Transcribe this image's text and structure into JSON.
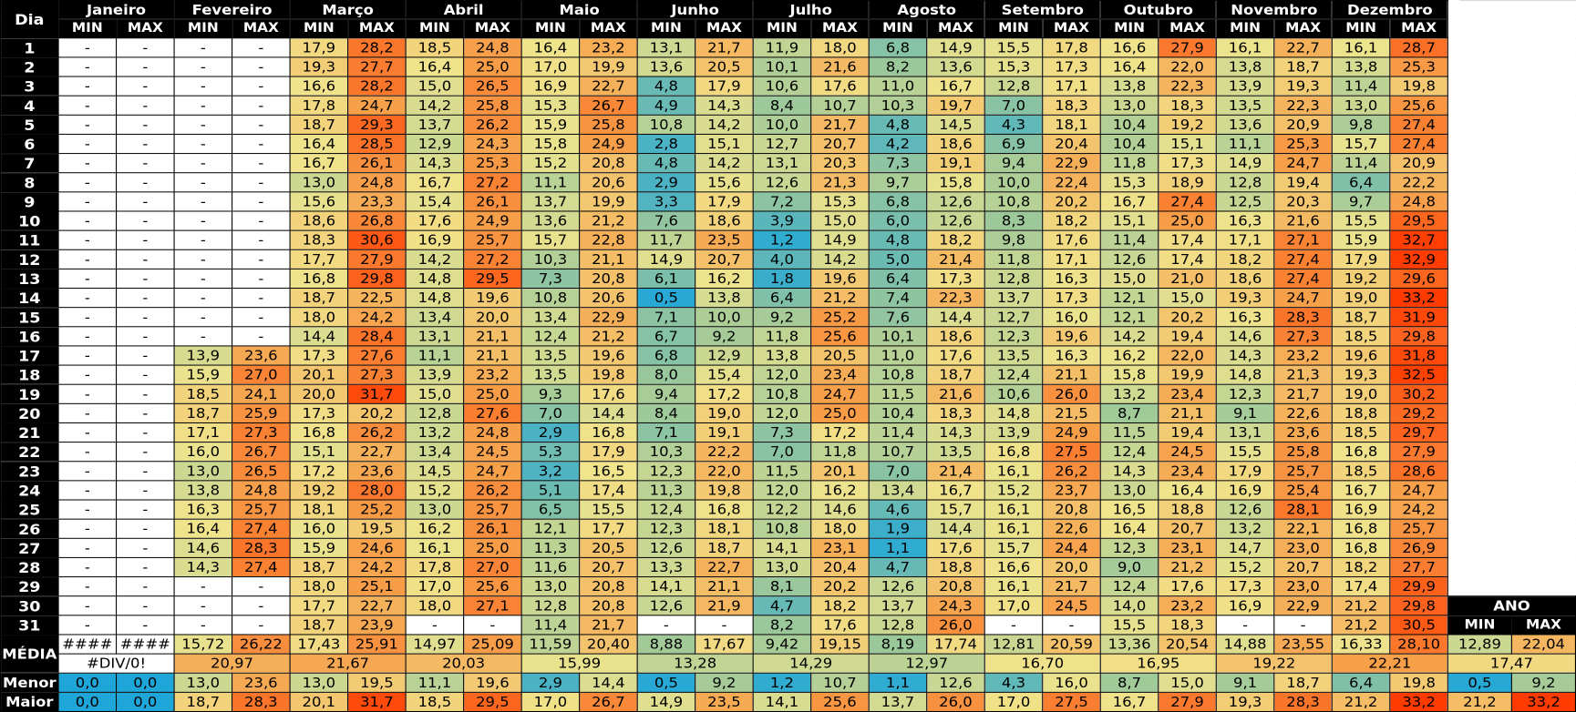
{
  "sheet": {
    "day_header": "Dia",
    "min_label": "MIN",
    "max_label": "MAX",
    "months": [
      "Janeiro",
      "Fevereiro",
      "Março",
      "Abril",
      "Maio",
      "Junho",
      "Julho",
      "Agosto",
      "Setembro",
      "Outubro",
      "Novembro",
      "Dezembro"
    ],
    "rows": [
      [
        "1",
        "-",
        "-",
        "-",
        "-",
        "17,9",
        "28,2",
        "18,5",
        "24,8",
        "16,4",
        "23,2",
        "13,1",
        "21,7",
        "11,9",
        "18,0",
        "6,8",
        "14,9",
        "15,5",
        "17,8",
        "16,6",
        "27,9",
        "16,1",
        "22,7",
        "16,1",
        "28,7"
      ],
      [
        "2",
        "-",
        "-",
        "-",
        "-",
        "19,3",
        "27,7",
        "16,4",
        "25,0",
        "17,0",
        "19,9",
        "13,6",
        "20,5",
        "10,1",
        "21,6",
        "8,2",
        "13,6",
        "15,3",
        "17,3",
        "16,4",
        "22,0",
        "13,8",
        "18,7",
        "13,8",
        "25,3"
      ],
      [
        "3",
        "-",
        "-",
        "-",
        "-",
        "16,6",
        "28,2",
        "15,0",
        "26,5",
        "16,9",
        "22,7",
        "4,8",
        "17,9",
        "10,6",
        "17,6",
        "11,0",
        "16,7",
        "12,8",
        "17,1",
        "13,8",
        "22,3",
        "13,9",
        "19,3",
        "11,4",
        "19,8"
      ],
      [
        "4",
        "-",
        "-",
        "-",
        "-",
        "17,8",
        "24,7",
        "14,2",
        "25,8",
        "15,3",
        "26,7",
        "4,9",
        "14,3",
        "8,4",
        "10,7",
        "10,3",
        "19,7",
        "7,0",
        "18,3",
        "13,0",
        "18,3",
        "13,5",
        "22,3",
        "13,0",
        "25,6"
      ],
      [
        "5",
        "-",
        "-",
        "-",
        "-",
        "18,7",
        "29,3",
        "13,7",
        "26,2",
        "15,9",
        "25,8",
        "10,8",
        "14,2",
        "10,0",
        "21,7",
        "4,8",
        "14,5",
        "4,3",
        "18,1",
        "10,4",
        "19,2",
        "13,6",
        "20,9",
        "9,8",
        "27,4"
      ],
      [
        "6",
        "-",
        "-",
        "-",
        "-",
        "16,4",
        "28,5",
        "12,9",
        "24,3",
        "15,8",
        "24,9",
        "2,8",
        "15,1",
        "12,7",
        "20,7",
        "4,2",
        "18,6",
        "6,9",
        "20,4",
        "10,4",
        "15,1",
        "11,1",
        "25,3",
        "15,7",
        "27,4"
      ],
      [
        "7",
        "-",
        "-",
        "-",
        "-",
        "16,7",
        "26,1",
        "14,3",
        "25,3",
        "15,2",
        "20,8",
        "4,8",
        "14,2",
        "13,1",
        "20,3",
        "7,3",
        "19,1",
        "9,4",
        "22,9",
        "11,8",
        "17,3",
        "14,9",
        "24,7",
        "11,4",
        "20,9"
      ],
      [
        "8",
        "-",
        "-",
        "-",
        "-",
        "13,0",
        "24,8",
        "16,7",
        "27,2",
        "11,1",
        "20,6",
        "2,9",
        "15,6",
        "12,6",
        "21,3",
        "9,7",
        "15,8",
        "10,0",
        "22,4",
        "15,3",
        "18,9",
        "12,8",
        "19,4",
        "6,4",
        "22,2"
      ],
      [
        "9",
        "-",
        "-",
        "-",
        "-",
        "15,6",
        "23,3",
        "15,4",
        "26,1",
        "13,7",
        "19,9",
        "3,3",
        "17,9",
        "7,2",
        "15,3",
        "6,8",
        "12,6",
        "10,8",
        "20,2",
        "16,7",
        "27,4",
        "12,5",
        "20,3",
        "9,7",
        "24,8"
      ],
      [
        "10",
        "-",
        "-",
        "-",
        "-",
        "18,6",
        "26,8",
        "17,6",
        "24,9",
        "13,6",
        "21,2",
        "7,6",
        "18,6",
        "3,9",
        "15,0",
        "6,0",
        "12,6",
        "8,3",
        "18,2",
        "15,1",
        "25,0",
        "16,3",
        "21,6",
        "15,5",
        "29,5"
      ],
      [
        "11",
        "-",
        "-",
        "-",
        "-",
        "18,3",
        "30,6",
        "16,9",
        "25,7",
        "15,7",
        "22,8",
        "11,7",
        "23,5",
        "1,2",
        "14,9",
        "4,8",
        "18,2",
        "9,8",
        "17,6",
        "11,4",
        "17,4",
        "17,1",
        "27,1",
        "15,9",
        "32,7"
      ],
      [
        "12",
        "-",
        "-",
        "-",
        "-",
        "17,7",
        "27,9",
        "14,2",
        "27,2",
        "10,3",
        "21,1",
        "14,9",
        "20,7",
        "4,0",
        "14,2",
        "5,0",
        "21,4",
        "11,8",
        "17,1",
        "12,6",
        "17,4",
        "18,2",
        "27,4",
        "17,9",
        "32,9"
      ],
      [
        "13",
        "-",
        "-",
        "-",
        "-",
        "16,8",
        "29,8",
        "14,8",
        "29,5",
        "7,3",
        "20,8",
        "6,1",
        "16,2",
        "1,8",
        "19,6",
        "6,4",
        "17,3",
        "12,8",
        "16,3",
        "15,0",
        "21,0",
        "18,6",
        "27,4",
        "19,2",
        "29,6"
      ],
      [
        "14",
        "-",
        "-",
        "-",
        "-",
        "18,7",
        "22,5",
        "14,8",
        "19,6",
        "10,8",
        "20,6",
        "0,5",
        "13,8",
        "6,4",
        "21,2",
        "7,4",
        "22,3",
        "13,7",
        "17,3",
        "12,1",
        "15,0",
        "19,3",
        "24,7",
        "19,0",
        "33,2"
      ],
      [
        "15",
        "-",
        "-",
        "-",
        "-",
        "18,0",
        "24,2",
        "13,4",
        "20,0",
        "13,4",
        "22,9",
        "7,1",
        "10,0",
        "9,2",
        "25,2",
        "7,6",
        "14,4",
        "12,7",
        "16,0",
        "12,1",
        "20,2",
        "16,3",
        "28,3",
        "18,7",
        "31,9"
      ],
      [
        "16",
        "-",
        "-",
        "-",
        "-",
        "14,4",
        "28,4",
        "13,1",
        "21,1",
        "12,4",
        "21,2",
        "6,7",
        "9,2",
        "11,8",
        "25,6",
        "10,1",
        "18,6",
        "12,3",
        "19,6",
        "14,2",
        "19,4",
        "14,6",
        "27,3",
        "18,5",
        "29,8"
      ],
      [
        "17",
        "-",
        "-",
        "13,9",
        "23,6",
        "17,3",
        "27,6",
        "11,1",
        "21,1",
        "13,5",
        "19,6",
        "6,8",
        "12,9",
        "13,8",
        "20,5",
        "11,0",
        "17,6",
        "13,5",
        "16,3",
        "16,2",
        "22,0",
        "14,3",
        "23,2",
        "19,6",
        "31,8"
      ],
      [
        "18",
        "-",
        "-",
        "15,9",
        "27,0",
        "20,1",
        "27,3",
        "13,9",
        "23,2",
        "13,5",
        "19,8",
        "8,0",
        "15,4",
        "12,0",
        "23,4",
        "10,8",
        "18,7",
        "12,4",
        "21,1",
        "15,8",
        "19,9",
        "14,8",
        "21,3",
        "19,3",
        "32,5"
      ],
      [
        "19",
        "-",
        "-",
        "18,5",
        "24,1",
        "20,0",
        "31,7",
        "15,0",
        "25,0",
        "9,3",
        "17,6",
        "9,4",
        "17,2",
        "10,8",
        "24,7",
        "11,5",
        "21,6",
        "10,6",
        "26,0",
        "13,2",
        "23,4",
        "12,3",
        "21,7",
        "19,0",
        "30,2"
      ],
      [
        "20",
        "-",
        "-",
        "18,7",
        "25,9",
        "17,3",
        "20,2",
        "12,8",
        "27,6",
        "7,0",
        "14,4",
        "8,4",
        "19,0",
        "12,0",
        "25,0",
        "10,4",
        "18,3",
        "14,8",
        "21,5",
        "8,7",
        "21,1",
        "9,1",
        "22,6",
        "18,8",
        "29,2"
      ],
      [
        "21",
        "-",
        "-",
        "17,1",
        "27,3",
        "16,8",
        "26,2",
        "13,2",
        "24,8",
        "2,9",
        "16,8",
        "7,1",
        "19,1",
        "7,3",
        "17,2",
        "11,4",
        "14,3",
        "13,9",
        "24,9",
        "11,5",
        "19,4",
        "13,1",
        "23,6",
        "18,5",
        "29,7"
      ],
      [
        "22",
        "-",
        "-",
        "16,0",
        "26,7",
        "15,1",
        "22,7",
        "13,4",
        "24,5",
        "5,3",
        "17,9",
        "10,3",
        "22,2",
        "7,0",
        "11,8",
        "10,7",
        "13,5",
        "16,8",
        "27,5",
        "12,4",
        "24,5",
        "15,5",
        "25,8",
        "16,8",
        "27,9"
      ],
      [
        "23",
        "-",
        "-",
        "13,0",
        "26,5",
        "17,2",
        "23,6",
        "14,5",
        "24,7",
        "3,2",
        "16,5",
        "12,3",
        "22,0",
        "11,5",
        "20,1",
        "7,0",
        "21,4",
        "16,1",
        "26,2",
        "14,3",
        "23,4",
        "17,9",
        "25,7",
        "18,5",
        "28,6"
      ],
      [
        "24",
        "-",
        "-",
        "13,8",
        "24,8",
        "19,2",
        "28,0",
        "15,2",
        "26,2",
        "5,1",
        "17,4",
        "11,3",
        "19,8",
        "12,0",
        "16,2",
        "13,4",
        "16,7",
        "15,2",
        "23,7",
        "13,0",
        "16,4",
        "16,9",
        "25,4",
        "16,7",
        "24,7"
      ],
      [
        "25",
        "-",
        "-",
        "16,3",
        "25,7",
        "18,1",
        "25,2",
        "13,0",
        "25,7",
        "6,5",
        "15,5",
        "12,4",
        "16,8",
        "12,2",
        "14,6",
        "4,6",
        "15,7",
        "16,1",
        "20,8",
        "16,5",
        "18,8",
        "12,6",
        "28,1",
        "16,9",
        "24,2"
      ],
      [
        "26",
        "-",
        "-",
        "16,4",
        "27,4",
        "16,0",
        "19,5",
        "16,2",
        "26,1",
        "12,1",
        "17,7",
        "12,3",
        "18,1",
        "10,8",
        "18,0",
        "1,9",
        "14,4",
        "16,1",
        "22,6",
        "16,4",
        "20,7",
        "13,2",
        "22,1",
        "16,8",
        "25,7"
      ],
      [
        "27",
        "-",
        "-",
        "14,6",
        "28,3",
        "15,9",
        "24,6",
        "16,1",
        "25,0",
        "11,3",
        "20,5",
        "12,6",
        "18,7",
        "14,1",
        "23,1",
        "1,1",
        "17,6",
        "15,7",
        "24,4",
        "12,3",
        "23,1",
        "14,7",
        "23,0",
        "16,8",
        "26,9"
      ],
      [
        "28",
        "-",
        "-",
        "14,3",
        "27,4",
        "18,7",
        "24,2",
        "17,8",
        "27,0",
        "11,6",
        "20,7",
        "13,3",
        "22,7",
        "13,0",
        "20,4",
        "4,7",
        "18,8",
        "16,6",
        "20,0",
        "9,0",
        "21,2",
        "15,2",
        "20,7",
        "18,2",
        "27,7"
      ],
      [
        "29",
        "-",
        "-",
        "-",
        "-",
        "18,0",
        "25,1",
        "17,0",
        "25,6",
        "13,0",
        "20,8",
        "14,1",
        "21,1",
        "8,1",
        "20,2",
        "12,6",
        "20,8",
        "16,1",
        "21,7",
        "12,4",
        "17,6",
        "17,3",
        "23,0",
        "17,4",
        "29,9"
      ],
      [
        "30",
        "-",
        "-",
        "-",
        "-",
        "17,7",
        "22,7",
        "18,0",
        "27,1",
        "12,8",
        "20,8",
        "12,6",
        "21,9",
        "4,7",
        "18,2",
        "13,7",
        "24,3",
        "17,0",
        "24,5",
        "14,0",
        "23,2",
        "16,9",
        "22,9",
        "21,2",
        "29,8"
      ],
      [
        "31",
        "-",
        "-",
        "-",
        "-",
        "18,7",
        "23,9",
        "-",
        "-",
        "11,4",
        "21,7",
        "-",
        "-",
        "8,2",
        "17,6",
        "12,8",
        "26,0",
        "-",
        "-",
        "15,5",
        "18,3",
        "-",
        "-",
        "21,2",
        "30,5"
      ]
    ],
    "media_label": "MÉDIA",
    "media": [
      "####",
      "####",
      "15,72",
      "26,22",
      "17,43",
      "25,91",
      "14,97",
      "25,09",
      "11,59",
      "20,40",
      "8,88",
      "17,67",
      "9,42",
      "19,15",
      "8,19",
      "17,74",
      "12,81",
      "20,59",
      "13,36",
      "20,54",
      "14,88",
      "23,55",
      "16,33",
      "28,10"
    ],
    "media_month": [
      "#DIV/0!",
      "20,97",
      "21,67",
      "20,03",
      "15,99",
      "13,28",
      "14,29",
      "12,97",
      "16,70",
      "16,95",
      "19,22",
      "22,21"
    ],
    "menor_label": "Menor",
    "menor": [
      "0,0",
      "0,0",
      "13,0",
      "23,6",
      "13,0",
      "19,5",
      "11,1",
      "19,6",
      "2,9",
      "14,4",
      "0,5",
      "9,2",
      "1,2",
      "10,7",
      "1,1",
      "12,6",
      "4,3",
      "16,0",
      "8,7",
      "15,0",
      "9,1",
      "18,7",
      "6,4",
      "19,8"
    ],
    "maior_label": "Maior",
    "maior": [
      "0,0",
      "0,0",
      "18,7",
      "28,3",
      "20,1",
      "31,7",
      "18,5",
      "29,5",
      "17,0",
      "26,7",
      "14,9",
      "23,5",
      "14,1",
      "25,6",
      "13,7",
      "26,0",
      "17,0",
      "27,5",
      "16,7",
      "27,9",
      "19,3",
      "28,3",
      "21,2",
      "33,2"
    ],
    "ano": {
      "title": "ANO",
      "min_label": "MIN",
      "max_label": "MAX",
      "media": [
        "12,89",
        "22,04"
      ],
      "media_total": "17,47",
      "menor": [
        "0,5",
        "9,2"
      ],
      "maior": [
        "21,2",
        "33,2"
      ]
    }
  },
  "colors": {
    "header_bg": "#000000",
    "header_text": "#ffffff",
    "cold": "#1fa6d9",
    "cool": "#9cc89a",
    "mid": "#f0e48c",
    "warm": "#f7a04a",
    "hot": "#ff3b00",
    "error_cell": "#1e9fde"
  }
}
